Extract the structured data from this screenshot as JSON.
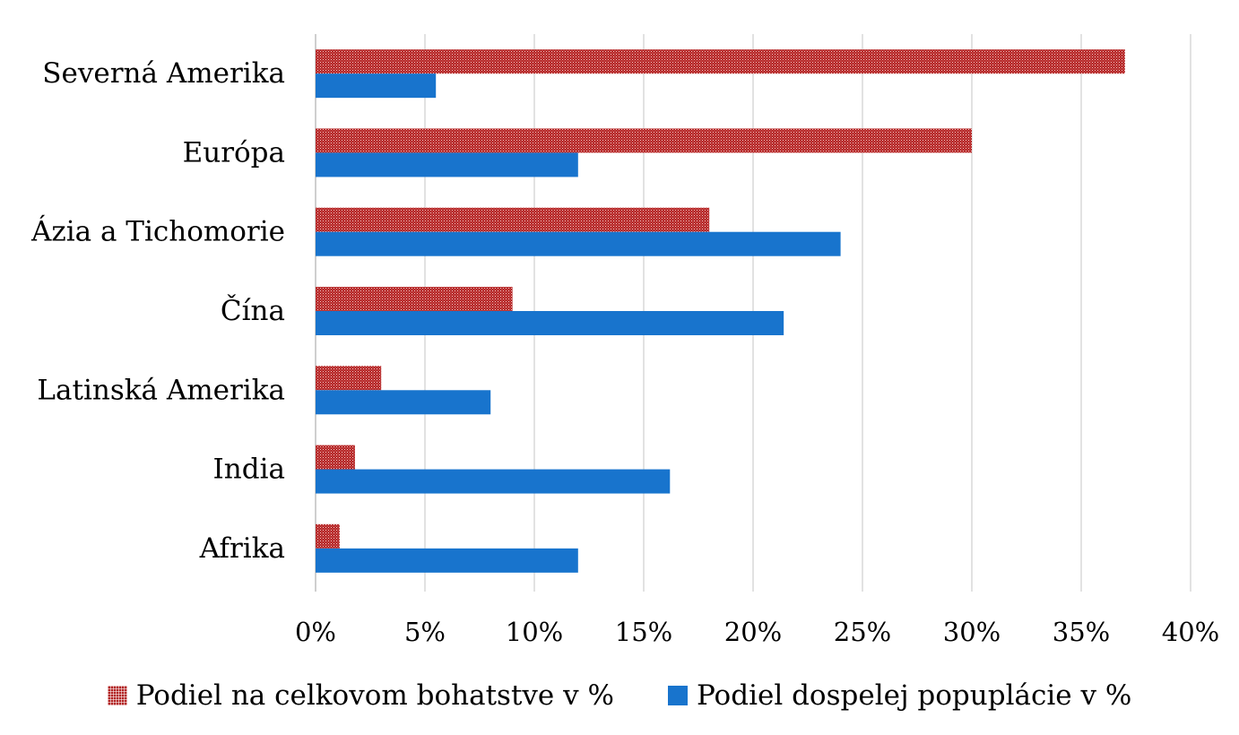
{
  "chart_data": {
    "type": "bar",
    "orientation": "horizontal",
    "categories": [
      "Severná Amerika",
      "Európa",
      "Ázia a Tichomorie",
      "Čína",
      "Latinská Amerika",
      "India",
      "Afrika"
    ],
    "series": [
      {
        "name": "Podiel na celkovom bohatstve v %",
        "color": "#b22222",
        "pattern": "dotted",
        "values": [
          37,
          30,
          18,
          9,
          3,
          1.8,
          1.1
        ]
      },
      {
        "name": "Podiel dospelej popuplácie v %",
        "color": "#1874cd",
        "values": [
          5.5,
          12,
          24,
          21.4,
          8,
          16.2,
          12
        ]
      }
    ],
    "xlim": [
      0,
      40
    ],
    "xticks": [
      "0%",
      "5%",
      "10%",
      "15%",
      "20%",
      "25%",
      "30%",
      "35%",
      "40%"
    ],
    "grid": true,
    "legend_position": "bottom"
  }
}
